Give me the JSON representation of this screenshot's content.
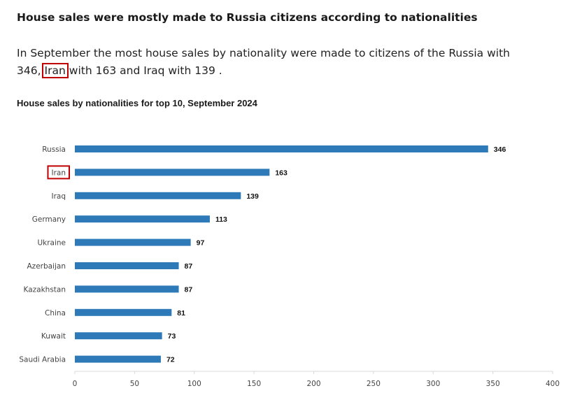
{
  "headline": "House sales were mostly made to Russia citizens according to nationalities",
  "summary": {
    "part1": "In September the most house sales by nationality were made to citizens of the Russia with 346,",
    "highlight": "Iran",
    "part2": "with 163 and Iraq with 139 ."
  },
  "colors": {
    "bar": "#2e7ab8",
    "highlight_box": "#c00000",
    "axis": "#d9d9d9"
  },
  "chart_data": {
    "type": "bar",
    "orientation": "horizontal",
    "title": "House sales by nationalities for top 10, September 2024",
    "categories": [
      "Russia",
      "Iran",
      "Iraq",
      "Germany",
      "Ukraine",
      "Azerbaijan",
      "Kazakhstan",
      "China",
      "Kuwait",
      "Saudi Arabia"
    ],
    "values": [
      346,
      163,
      139,
      113,
      97,
      87,
      87,
      81,
      73,
      72
    ],
    "value_labels": [
      "346",
      "163",
      "139",
      "113",
      "97",
      "87",
      "87",
      "81",
      "73",
      "72"
    ],
    "highlighted_category": "Iran",
    "xlim": [
      0,
      400
    ],
    "xticks": [
      0,
      50,
      100,
      150,
      200,
      250,
      300,
      350,
      400
    ],
    "xtick_labels": [
      "0",
      "50",
      "100",
      "150",
      "200",
      "250",
      "300",
      "350",
      "400"
    ],
    "xlabel": "",
    "ylabel": "",
    "grid": false,
    "legend": "none"
  }
}
